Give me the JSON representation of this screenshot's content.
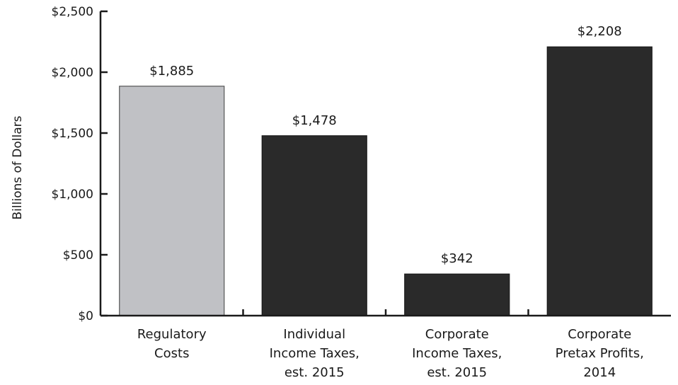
{
  "chart_data": {
    "type": "bar",
    "title": "",
    "xlabel": "",
    "ylabel": "Billions of Dollars",
    "ylim": [
      0,
      2500
    ],
    "yticks": [
      {
        "value": 0,
        "label": "$0"
      },
      {
        "value": 500,
        "label": "$500"
      },
      {
        "value": 1000,
        "label": "$1,000"
      },
      {
        "value": 1500,
        "label": "$1,500"
      },
      {
        "value": 2000,
        "label": "$2,000"
      },
      {
        "value": 2500,
        "label": "$2,500"
      }
    ],
    "categories": [
      [
        "Regulatory",
        "Costs"
      ],
      [
        "Individual",
        "Income Taxes,",
        "est. 2015"
      ],
      [
        "Corporate",
        "Income Taxes,",
        "est. 2015"
      ],
      [
        "Corporate",
        "Pretax Profits,",
        "2014"
      ]
    ],
    "values": [
      1885,
      1478,
      342,
      2208
    ],
    "value_labels": [
      "$1,885",
      "$1,478",
      "$342",
      "$2,208"
    ],
    "colors": [
      "#c0c1c5",
      "#2a2a2a",
      "#2a2a2a",
      "#2a2a2a"
    ],
    "grid": false,
    "legend": "none"
  }
}
